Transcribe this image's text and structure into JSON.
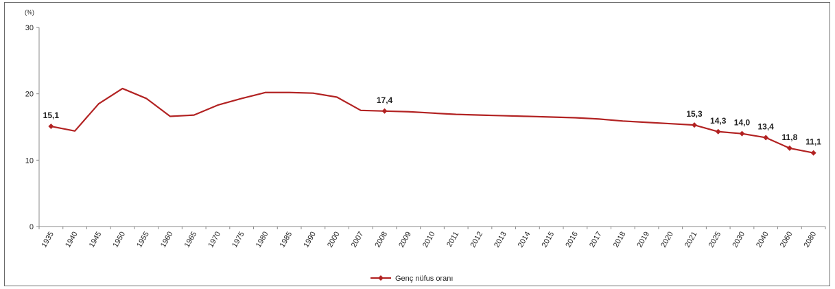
{
  "chart_data": {
    "type": "line",
    "y_unit": "(%)",
    "ylim": [
      0,
      30
    ],
    "y_ticks": [
      "0",
      "10",
      "20",
      "30"
    ],
    "grid": false,
    "legend_position": "bottom-center",
    "categories": [
      "1935",
      "1940",
      "1945",
      "1950",
      "1955",
      "1960",
      "1965",
      "1970",
      "1975",
      "1980",
      "1985",
      "1990",
      "2000",
      "2007",
      "2008",
      "2009",
      "2010",
      "2011",
      "2012",
      "2013",
      "2014",
      "2015",
      "2016",
      "2017",
      "2018",
      "2019",
      "2020",
      "2021",
      "2025",
      "2030",
      "2040",
      "2060",
      "2080"
    ],
    "series": [
      {
        "name": "Genç nüfus oranı",
        "color": "#b22222",
        "values": [
          15.1,
          14.4,
          18.5,
          20.8,
          19.3,
          16.6,
          16.8,
          18.3,
          19.3,
          20.2,
          20.2,
          20.1,
          19.5,
          17.5,
          17.4,
          17.3,
          17.1,
          16.9,
          16.8,
          16.7,
          16.6,
          16.5,
          16.4,
          16.2,
          15.9,
          15.7,
          15.5,
          15.3,
          14.3,
          14.0,
          13.4,
          11.8,
          11.1
        ]
      }
    ],
    "data_labels": [
      {
        "category": "1935",
        "text": "15,1"
      },
      {
        "category": "2008",
        "text": "17,4"
      },
      {
        "category": "2021",
        "text": "15,3"
      },
      {
        "category": "2025",
        "text": "14,3"
      },
      {
        "category": "2030",
        "text": "14,0"
      },
      {
        "category": "2040",
        "text": "13,4"
      },
      {
        "category": "2060",
        "text": "11,8"
      },
      {
        "category": "2080",
        "text": "11,1"
      }
    ],
    "marker_categories": [
      "1935",
      "2008",
      "2021",
      "2025",
      "2030",
      "2040",
      "2060",
      "2080"
    ]
  }
}
